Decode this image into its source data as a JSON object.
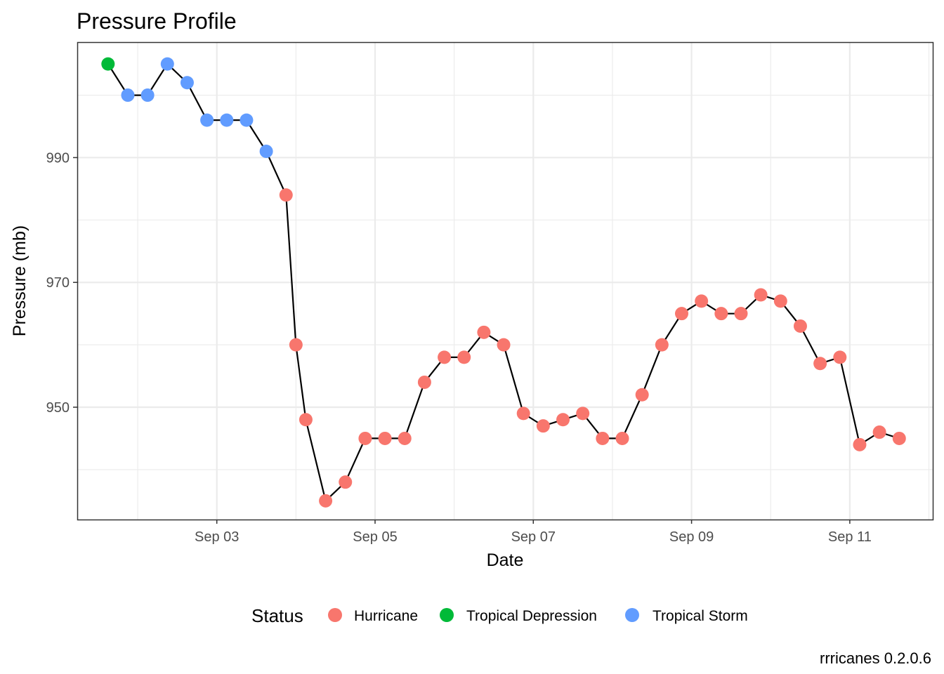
{
  "chart_data": {
    "type": "line",
    "title": "Pressure Profile",
    "xlabel": "Date",
    "ylabel": "Pressure (mb)",
    "caption": "rrricanes 0.2.0.6",
    "x_tick_labels": [
      "Sep 03",
      "Sep 05",
      "Sep 07",
      "Sep 09",
      "Sep 11"
    ],
    "y_ticks": [
      950,
      970,
      990
    ],
    "y_tick_labels": [
      "950",
      "970",
      "990"
    ],
    "xlim": [
      "2017-09-01T05:40",
      "2017-09-12T01:10"
    ],
    "ylim": [
      932,
      1008.5
    ],
    "grid": true,
    "legend": {
      "title": "Status",
      "position": "bottom",
      "entries": [
        {
          "label": "Hurricane",
          "color": "#F8766D"
        },
        {
          "label": "Tropical Depression",
          "color": "#00BA38"
        },
        {
          "label": "Tropical Storm",
          "color": "#619CFF"
        }
      ]
    },
    "line_color": "#000000",
    "points": [
      {
        "x": "2017-09-01T15:00",
        "y": 1005,
        "status": "Tropical Depression"
      },
      {
        "x": "2017-09-01T21:00",
        "y": 1000,
        "status": "Tropical Storm"
      },
      {
        "x": "2017-09-02T03:00",
        "y": 1000,
        "status": "Tropical Storm"
      },
      {
        "x": "2017-09-02T09:00",
        "y": 1005,
        "status": "Tropical Storm"
      },
      {
        "x": "2017-09-02T15:00",
        "y": 1002,
        "status": "Tropical Storm"
      },
      {
        "x": "2017-09-02T21:00",
        "y": 996,
        "status": "Tropical Storm"
      },
      {
        "x": "2017-09-03T03:00",
        "y": 996,
        "status": "Tropical Storm"
      },
      {
        "x": "2017-09-03T09:00",
        "y": 996,
        "status": "Tropical Storm"
      },
      {
        "x": "2017-09-03T15:00",
        "y": 991,
        "status": "Tropical Storm"
      },
      {
        "x": "2017-09-03T21:00",
        "y": 984,
        "status": "Hurricane"
      },
      {
        "x": "2017-09-04T00:00",
        "y": 960,
        "status": "Hurricane"
      },
      {
        "x": "2017-09-04T03:00",
        "y": 948,
        "status": "Hurricane"
      },
      {
        "x": "2017-09-04T09:00",
        "y": 935,
        "status": "Hurricane"
      },
      {
        "x": "2017-09-04T15:00",
        "y": 938,
        "status": "Hurricane"
      },
      {
        "x": "2017-09-04T21:00",
        "y": 945,
        "status": "Hurricane"
      },
      {
        "x": "2017-09-05T03:00",
        "y": 945,
        "status": "Hurricane"
      },
      {
        "x": "2017-09-05T09:00",
        "y": 945,
        "status": "Hurricane"
      },
      {
        "x": "2017-09-05T15:00",
        "y": 954,
        "status": "Hurricane"
      },
      {
        "x": "2017-09-05T21:00",
        "y": 958,
        "status": "Hurricane"
      },
      {
        "x": "2017-09-06T03:00",
        "y": 958,
        "status": "Hurricane"
      },
      {
        "x": "2017-09-06T09:00",
        "y": 962,
        "status": "Hurricane"
      },
      {
        "x": "2017-09-06T15:00",
        "y": 960,
        "status": "Hurricane"
      },
      {
        "x": "2017-09-06T21:00",
        "y": 949,
        "status": "Hurricane"
      },
      {
        "x": "2017-09-07T03:00",
        "y": 947,
        "status": "Hurricane"
      },
      {
        "x": "2017-09-07T09:00",
        "y": 948,
        "status": "Hurricane"
      },
      {
        "x": "2017-09-07T15:00",
        "y": 949,
        "status": "Hurricane"
      },
      {
        "x": "2017-09-07T21:00",
        "y": 945,
        "status": "Hurricane"
      },
      {
        "x": "2017-09-08T03:00",
        "y": 945,
        "status": "Hurricane"
      },
      {
        "x": "2017-09-08T09:00",
        "y": 952,
        "status": "Hurricane"
      },
      {
        "x": "2017-09-08T15:00",
        "y": 960,
        "status": "Hurricane"
      },
      {
        "x": "2017-09-08T21:00",
        "y": 965,
        "status": "Hurricane"
      },
      {
        "x": "2017-09-09T03:00",
        "y": 967,
        "status": "Hurricane"
      },
      {
        "x": "2017-09-09T09:00",
        "y": 965,
        "status": "Hurricane"
      },
      {
        "x": "2017-09-09T15:00",
        "y": 965,
        "status": "Hurricane"
      },
      {
        "x": "2017-09-09T21:00",
        "y": 968,
        "status": "Hurricane"
      },
      {
        "x": "2017-09-10T03:00",
        "y": 967,
        "status": "Hurricane"
      },
      {
        "x": "2017-09-10T09:00",
        "y": 963,
        "status": "Hurricane"
      },
      {
        "x": "2017-09-10T15:00",
        "y": 957,
        "status": "Hurricane"
      },
      {
        "x": "2017-09-10T21:00",
        "y": 958,
        "status": "Hurricane"
      },
      {
        "x": "2017-09-11T03:00",
        "y": 944,
        "status": "Hurricane"
      },
      {
        "x": "2017-09-11T09:00",
        "y": 946,
        "status": "Hurricane"
      },
      {
        "x": "2017-09-11T15:00",
        "y": 945,
        "status": "Hurricane"
      }
    ]
  }
}
